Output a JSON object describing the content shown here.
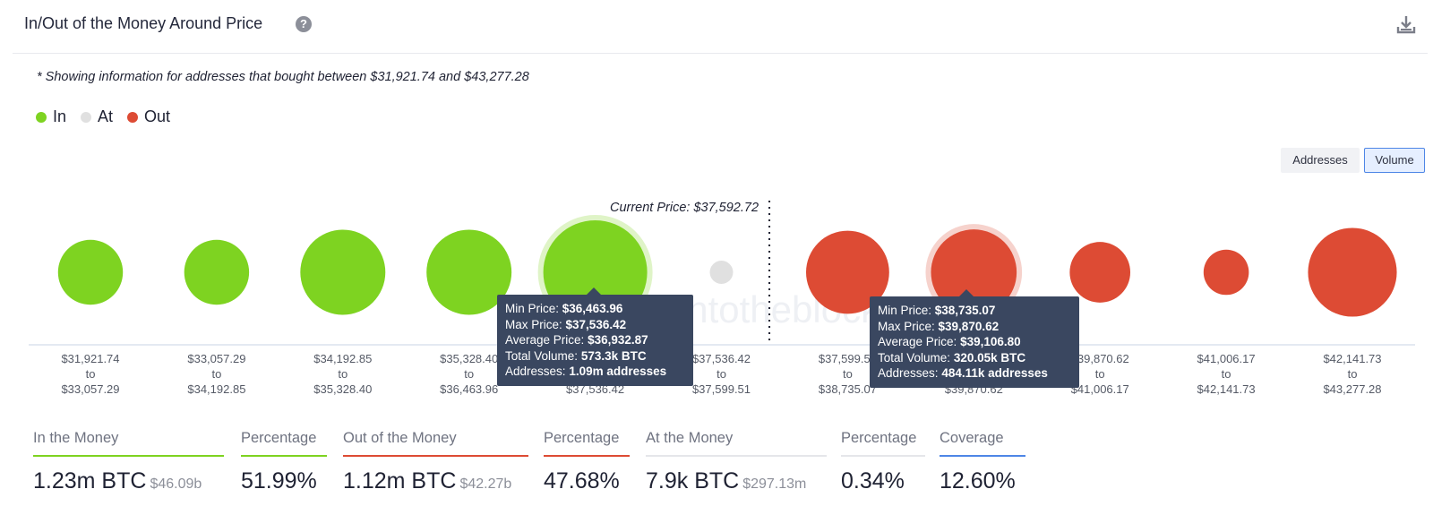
{
  "header": {
    "title": "In/Out of the Money Around Price",
    "help_icon": "question-circle-icon",
    "download_icon": "download-icon"
  },
  "note": "* Showing information for addresses that bought between $31,921.74 and $43,277.28",
  "legend": [
    {
      "label": "In",
      "color": "#7ed321"
    },
    {
      "label": "At",
      "color": "#e0e0e0"
    },
    {
      "label": "Out",
      "color": "#dd4b34"
    }
  ],
  "toggles": {
    "addresses": "Addresses",
    "volume": "Volume",
    "active": "Volume"
  },
  "chart_data": {
    "type": "scatter",
    "encoding": "bubble area = total volume per price range",
    "current_price_label": "Current Price: $37,592.72",
    "current_price": 37592.72,
    "watermark": "intotheblock",
    "ranges": [
      {
        "from": "$31,921.74",
        "to": "$33,057.29",
        "status": "in",
        "relative_size": 0.39
      },
      {
        "from": "$33,057.29",
        "to": "$34,192.85",
        "status": "in",
        "relative_size": 0.39
      },
      {
        "from": "$34,192.85",
        "to": "$35,328.40",
        "status": "in",
        "relative_size": 0.67
      },
      {
        "from": "$35,328.40",
        "to": "$36,463.96",
        "status": "in",
        "relative_size": 0.67
      },
      {
        "from": "$36,463.96",
        "to": "$37,536.42",
        "status": "in",
        "relative_size": 1.0,
        "highlighted": true
      },
      {
        "from": "$37,536.42",
        "to": "$37,599.51",
        "status": "at",
        "relative_size": 0.05
      },
      {
        "from": "$37,599.51",
        "to": "$38,735.07",
        "status": "out",
        "relative_size": 0.64
      },
      {
        "from": "$38,735.07",
        "to": "$39,870.62",
        "status": "out",
        "relative_size": 0.68,
        "highlighted": true
      },
      {
        "from": "$39,870.62",
        "to": "$41,006.17",
        "status": "out",
        "relative_size": 0.34
      },
      {
        "from": "$41,006.17",
        "to": "$42,141.73",
        "status": "out",
        "relative_size": 0.19
      },
      {
        "from": "$42,141.73",
        "to": "$43,277.28",
        "status": "out",
        "relative_size": 0.73
      }
    ],
    "to_word": "to"
  },
  "tooltips": [
    {
      "min_label": "Min Price:",
      "min": "$36,463.96",
      "max_label": "Max Price:",
      "max": "$37,536.42",
      "avg_label": "Average Price:",
      "avg": "$36,932.87",
      "vol_label": "Total Volume:",
      "vol": "573.3k BTC",
      "addr_label": "Addresses:",
      "addr": "1.09m addresses"
    },
    {
      "min_label": "Min Price:",
      "min": "$38,735.07",
      "max_label": "Max Price:",
      "max": "$39,870.62",
      "avg_label": "Average Price:",
      "avg": "$39,106.80",
      "vol_label": "Total Volume:",
      "vol": "320.05k BTC",
      "addr_label": "Addresses:",
      "addr": "484.11k addresses"
    }
  ],
  "stats": {
    "in_label": "In the Money",
    "in_value": "1.23m BTC",
    "in_sub": "$46.09b",
    "in_pct_label": "Percentage",
    "in_pct": "51.99%",
    "out_label": "Out of the Money",
    "out_value": "1.12m BTC",
    "out_sub": "$42.27b",
    "out_pct_label": "Percentage",
    "out_pct": "47.68%",
    "at_label": "At the Money",
    "at_value": "7.9k BTC",
    "at_sub": "$297.13m",
    "at_pct_label": "Percentage",
    "at_pct": "0.34%",
    "coverage_label": "Coverage",
    "coverage": "12.60%"
  },
  "colors": {
    "in": "#7ed321",
    "at": "#e0e0e0",
    "out": "#dd4b34",
    "coverage": "#4e86e6"
  }
}
